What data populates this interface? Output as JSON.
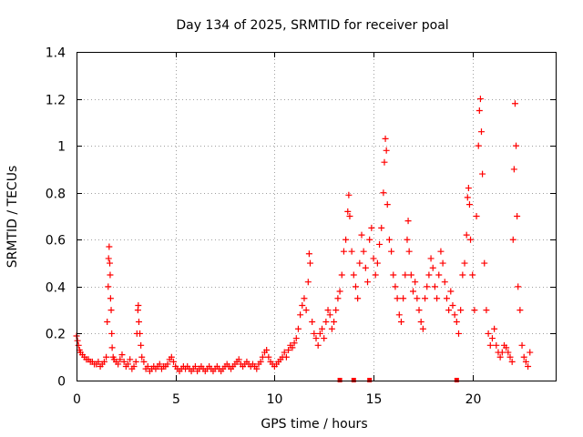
{
  "chart_data": {
    "type": "scatter",
    "title": "Day 134 of 2025, SRMTID for receiver poal",
    "xlabel": "GPS time / hours",
    "ylabel": "SRMTID / TECUs",
    "xlim": [
      0,
      24.2
    ],
    "ylim": [
      0,
      1.4
    ],
    "x_ticks": [
      0,
      5,
      10,
      15,
      20
    ],
    "x_tick_labels": [
      "0",
      "5",
      "10",
      "15",
      "20"
    ],
    "y_ticks": [
      0,
      0.2,
      0.4,
      0.6,
      0.8,
      1.0,
      1.2,
      1.4
    ],
    "y_tick_labels": [
      "0",
      "0.2",
      "0.4",
      "0.6",
      "0.8",
      "1",
      "1.2",
      "1.4"
    ],
    "grid": true,
    "marker": "+",
    "color": "#ff0000",
    "series": [
      {
        "name": "SRMTID",
        "points": [
          [
            0.0,
            0.19
          ],
          [
            0.05,
            0.17
          ],
          [
            0.1,
            0.15
          ],
          [
            0.15,
            0.13
          ],
          [
            0.2,
            0.12
          ],
          [
            0.3,
            0.11
          ],
          [
            0.4,
            0.1
          ],
          [
            0.5,
            0.09
          ],
          [
            0.6,
            0.09
          ],
          [
            0.7,
            0.08
          ],
          [
            0.8,
            0.08
          ],
          [
            0.9,
            0.07
          ],
          [
            1.0,
            0.07
          ],
          [
            1.1,
            0.08
          ],
          [
            1.2,
            0.06
          ],
          [
            1.3,
            0.07
          ],
          [
            1.4,
            0.08
          ],
          [
            1.5,
            0.1
          ],
          [
            1.55,
            0.25
          ],
          [
            1.6,
            0.4
          ],
          [
            1.62,
            0.52
          ],
          [
            1.65,
            0.57
          ],
          [
            1.68,
            0.5
          ],
          [
            1.7,
            0.45
          ],
          [
            1.72,
            0.35
          ],
          [
            1.75,
            0.3
          ],
          [
            1.78,
            0.2
          ],
          [
            1.8,
            0.14
          ],
          [
            1.85,
            0.1
          ],
          [
            1.9,
            0.09
          ],
          [
            2.0,
            0.08
          ],
          [
            2.1,
            0.07
          ],
          [
            2.2,
            0.09
          ],
          [
            2.3,
            0.11
          ],
          [
            2.4,
            0.08
          ],
          [
            2.5,
            0.06
          ],
          [
            2.6,
            0.07
          ],
          [
            2.7,
            0.09
          ],
          [
            2.8,
            0.05
          ],
          [
            2.9,
            0.06
          ],
          [
            3.0,
            0.08
          ],
          [
            3.05,
            0.2
          ],
          [
            3.1,
            0.3
          ],
          [
            3.12,
            0.32
          ],
          [
            3.15,
            0.25
          ],
          [
            3.2,
            0.2
          ],
          [
            3.25,
            0.15
          ],
          [
            3.3,
            0.1
          ],
          [
            3.4,
            0.08
          ],
          [
            3.5,
            0.05
          ],
          [
            3.6,
            0.06
          ],
          [
            3.7,
            0.04
          ],
          [
            3.8,
            0.05
          ],
          [
            3.9,
            0.06
          ],
          [
            4.0,
            0.05
          ],
          [
            4.1,
            0.06
          ],
          [
            4.2,
            0.07
          ],
          [
            4.3,
            0.05
          ],
          [
            4.4,
            0.06
          ],
          [
            4.5,
            0.06
          ],
          [
            4.6,
            0.07
          ],
          [
            4.7,
            0.09
          ],
          [
            4.8,
            0.1
          ],
          [
            4.9,
            0.08
          ],
          [
            5.0,
            0.06
          ],
          [
            5.1,
            0.05
          ],
          [
            5.2,
            0.04
          ],
          [
            5.3,
            0.05
          ],
          [
            5.4,
            0.06
          ],
          [
            5.5,
            0.05
          ],
          [
            5.6,
            0.06
          ],
          [
            5.7,
            0.05
          ],
          [
            5.8,
            0.04
          ],
          [
            5.9,
            0.05
          ],
          [
            6.0,
            0.06
          ],
          [
            6.1,
            0.04
          ],
          [
            6.2,
            0.05
          ],
          [
            6.3,
            0.06
          ],
          [
            6.4,
            0.05
          ],
          [
            6.5,
            0.04
          ],
          [
            6.6,
            0.05
          ],
          [
            6.7,
            0.06
          ],
          [
            6.8,
            0.05
          ],
          [
            6.9,
            0.04
          ],
          [
            7.0,
            0.05
          ],
          [
            7.1,
            0.06
          ],
          [
            7.2,
            0.05
          ],
          [
            7.3,
            0.04
          ],
          [
            7.4,
            0.05
          ],
          [
            7.5,
            0.06
          ],
          [
            7.6,
            0.07
          ],
          [
            7.7,
            0.06
          ],
          [
            7.8,
            0.05
          ],
          [
            7.9,
            0.06
          ],
          [
            8.0,
            0.07
          ],
          [
            8.1,
            0.08
          ],
          [
            8.2,
            0.09
          ],
          [
            8.3,
            0.07
          ],
          [
            8.4,
            0.06
          ],
          [
            8.5,
            0.07
          ],
          [
            8.6,
            0.08
          ],
          [
            8.7,
            0.07
          ],
          [
            8.8,
            0.06
          ],
          [
            8.9,
            0.07
          ],
          [
            9.0,
            0.06
          ],
          [
            9.1,
            0.05
          ],
          [
            9.2,
            0.07
          ],
          [
            9.3,
            0.08
          ],
          [
            9.4,
            0.1
          ],
          [
            9.5,
            0.12
          ],
          [
            9.6,
            0.13
          ],
          [
            9.7,
            0.1
          ],
          [
            9.8,
            0.08
          ],
          [
            9.9,
            0.07
          ],
          [
            10.0,
            0.06
          ],
          [
            10.1,
            0.07
          ],
          [
            10.2,
            0.08
          ],
          [
            10.3,
            0.09
          ],
          [
            10.4,
            0.1
          ],
          [
            10.5,
            0.12
          ],
          [
            10.6,
            0.1
          ],
          [
            10.7,
            0.13
          ],
          [
            10.8,
            0.15
          ],
          [
            10.9,
            0.14
          ],
          [
            11.0,
            0.16
          ],
          [
            11.1,
            0.18
          ],
          [
            11.2,
            0.22
          ],
          [
            11.3,
            0.28
          ],
          [
            11.4,
            0.32
          ],
          [
            11.5,
            0.35
          ],
          [
            11.6,
            0.3
          ],
          [
            11.7,
            0.42
          ],
          [
            11.75,
            0.54
          ],
          [
            11.8,
            0.5
          ],
          [
            11.9,
            0.25
          ],
          [
            12.0,
            0.2
          ],
          [
            12.1,
            0.18
          ],
          [
            12.2,
            0.15
          ],
          [
            12.3,
            0.2
          ],
          [
            12.4,
            0.22
          ],
          [
            12.5,
            0.18
          ],
          [
            12.6,
            0.25
          ],
          [
            12.7,
            0.3
          ],
          [
            12.8,
            0.28
          ],
          [
            12.9,
            0.22
          ],
          [
            13.0,
            0.25
          ],
          [
            13.1,
            0.3
          ],
          [
            13.2,
            0.35
          ],
          [
            13.3,
            0.38
          ],
          [
            13.4,
            0.45
          ],
          [
            13.5,
            0.55
          ],
          [
            13.6,
            0.6
          ],
          [
            13.7,
            0.72
          ],
          [
            13.75,
            0.79
          ],
          [
            13.8,
            0.7
          ],
          [
            13.9,
            0.55
          ],
          [
            14.0,
            0.45
          ],
          [
            14.1,
            0.4
          ],
          [
            14.2,
            0.35
          ],
          [
            14.3,
            0.5
          ],
          [
            14.4,
            0.62
          ],
          [
            14.5,
            0.55
          ],
          [
            14.6,
            0.48
          ],
          [
            14.7,
            0.42
          ],
          [
            14.8,
            0.6
          ],
          [
            14.9,
            0.65
          ],
          [
            15.0,
            0.52
          ],
          [
            15.1,
            0.45
          ],
          [
            15.2,
            0.5
          ],
          [
            15.3,
            0.58
          ],
          [
            15.4,
            0.65
          ],
          [
            15.5,
            0.8
          ],
          [
            15.55,
            0.93
          ],
          [
            15.6,
            1.03
          ],
          [
            15.65,
            0.98
          ],
          [
            15.7,
            0.75
          ],
          [
            15.8,
            0.6
          ],
          [
            15.9,
            0.55
          ],
          [
            16.0,
            0.45
          ],
          [
            16.1,
            0.4
          ],
          [
            16.2,
            0.35
          ],
          [
            16.3,
            0.28
          ],
          [
            16.4,
            0.25
          ],
          [
            16.5,
            0.35
          ],
          [
            16.6,
            0.45
          ],
          [
            16.7,
            0.6
          ],
          [
            16.75,
            0.68
          ],
          [
            16.8,
            0.55
          ],
          [
            16.9,
            0.45
          ],
          [
            17.0,
            0.38
          ],
          [
            17.1,
            0.42
          ],
          [
            17.2,
            0.35
          ],
          [
            17.3,
            0.3
          ],
          [
            17.4,
            0.25
          ],
          [
            17.5,
            0.22
          ],
          [
            17.6,
            0.35
          ],
          [
            17.7,
            0.4
          ],
          [
            17.8,
            0.45
          ],
          [
            17.9,
            0.52
          ],
          [
            18.0,
            0.48
          ],
          [
            18.1,
            0.4
          ],
          [
            18.2,
            0.35
          ],
          [
            18.3,
            0.45
          ],
          [
            18.4,
            0.55
          ],
          [
            18.5,
            0.5
          ],
          [
            18.6,
            0.42
          ],
          [
            18.7,
            0.35
          ],
          [
            18.8,
            0.3
          ],
          [
            18.9,
            0.38
          ],
          [
            19.0,
            0.32
          ],
          [
            19.1,
            0.28
          ],
          [
            19.2,
            0.25
          ],
          [
            19.3,
            0.2
          ],
          [
            19.4,
            0.3
          ],
          [
            19.5,
            0.45
          ],
          [
            19.6,
            0.5
          ],
          [
            19.7,
            0.62
          ],
          [
            19.75,
            0.78
          ],
          [
            19.8,
            0.82
          ],
          [
            19.85,
            0.75
          ],
          [
            19.9,
            0.6
          ],
          [
            20.0,
            0.45
          ],
          [
            20.1,
            0.3
          ],
          [
            20.2,
            0.7
          ],
          [
            20.3,
            1.0
          ],
          [
            20.35,
            1.15
          ],
          [
            20.4,
            1.2
          ],
          [
            20.45,
            1.06
          ],
          [
            20.5,
            0.88
          ],
          [
            20.6,
            0.5
          ],
          [
            20.7,
            0.3
          ],
          [
            20.8,
            0.2
          ],
          [
            20.9,
            0.15
          ],
          [
            21.0,
            0.18
          ],
          [
            21.1,
            0.22
          ],
          [
            21.2,
            0.15
          ],
          [
            21.3,
            0.12
          ],
          [
            21.4,
            0.1
          ],
          [
            21.5,
            0.12
          ],
          [
            21.6,
            0.15
          ],
          [
            21.7,
            0.14
          ],
          [
            21.8,
            0.12
          ],
          [
            21.9,
            0.1
          ],
          [
            22.0,
            0.08
          ],
          [
            22.05,
            0.6
          ],
          [
            22.1,
            0.9
          ],
          [
            22.15,
            1.18
          ],
          [
            22.2,
            1.0
          ],
          [
            22.25,
            0.7
          ],
          [
            22.3,
            0.4
          ],
          [
            22.4,
            0.3
          ],
          [
            22.5,
            0.15
          ],
          [
            22.6,
            0.1
          ],
          [
            22.7,
            0.08
          ],
          [
            22.8,
            0.06
          ],
          [
            22.9,
            0.12
          ]
        ]
      }
    ],
    "baseline_markers_x": [
      13.3,
      14.0,
      14.8,
      19.2
    ]
  }
}
